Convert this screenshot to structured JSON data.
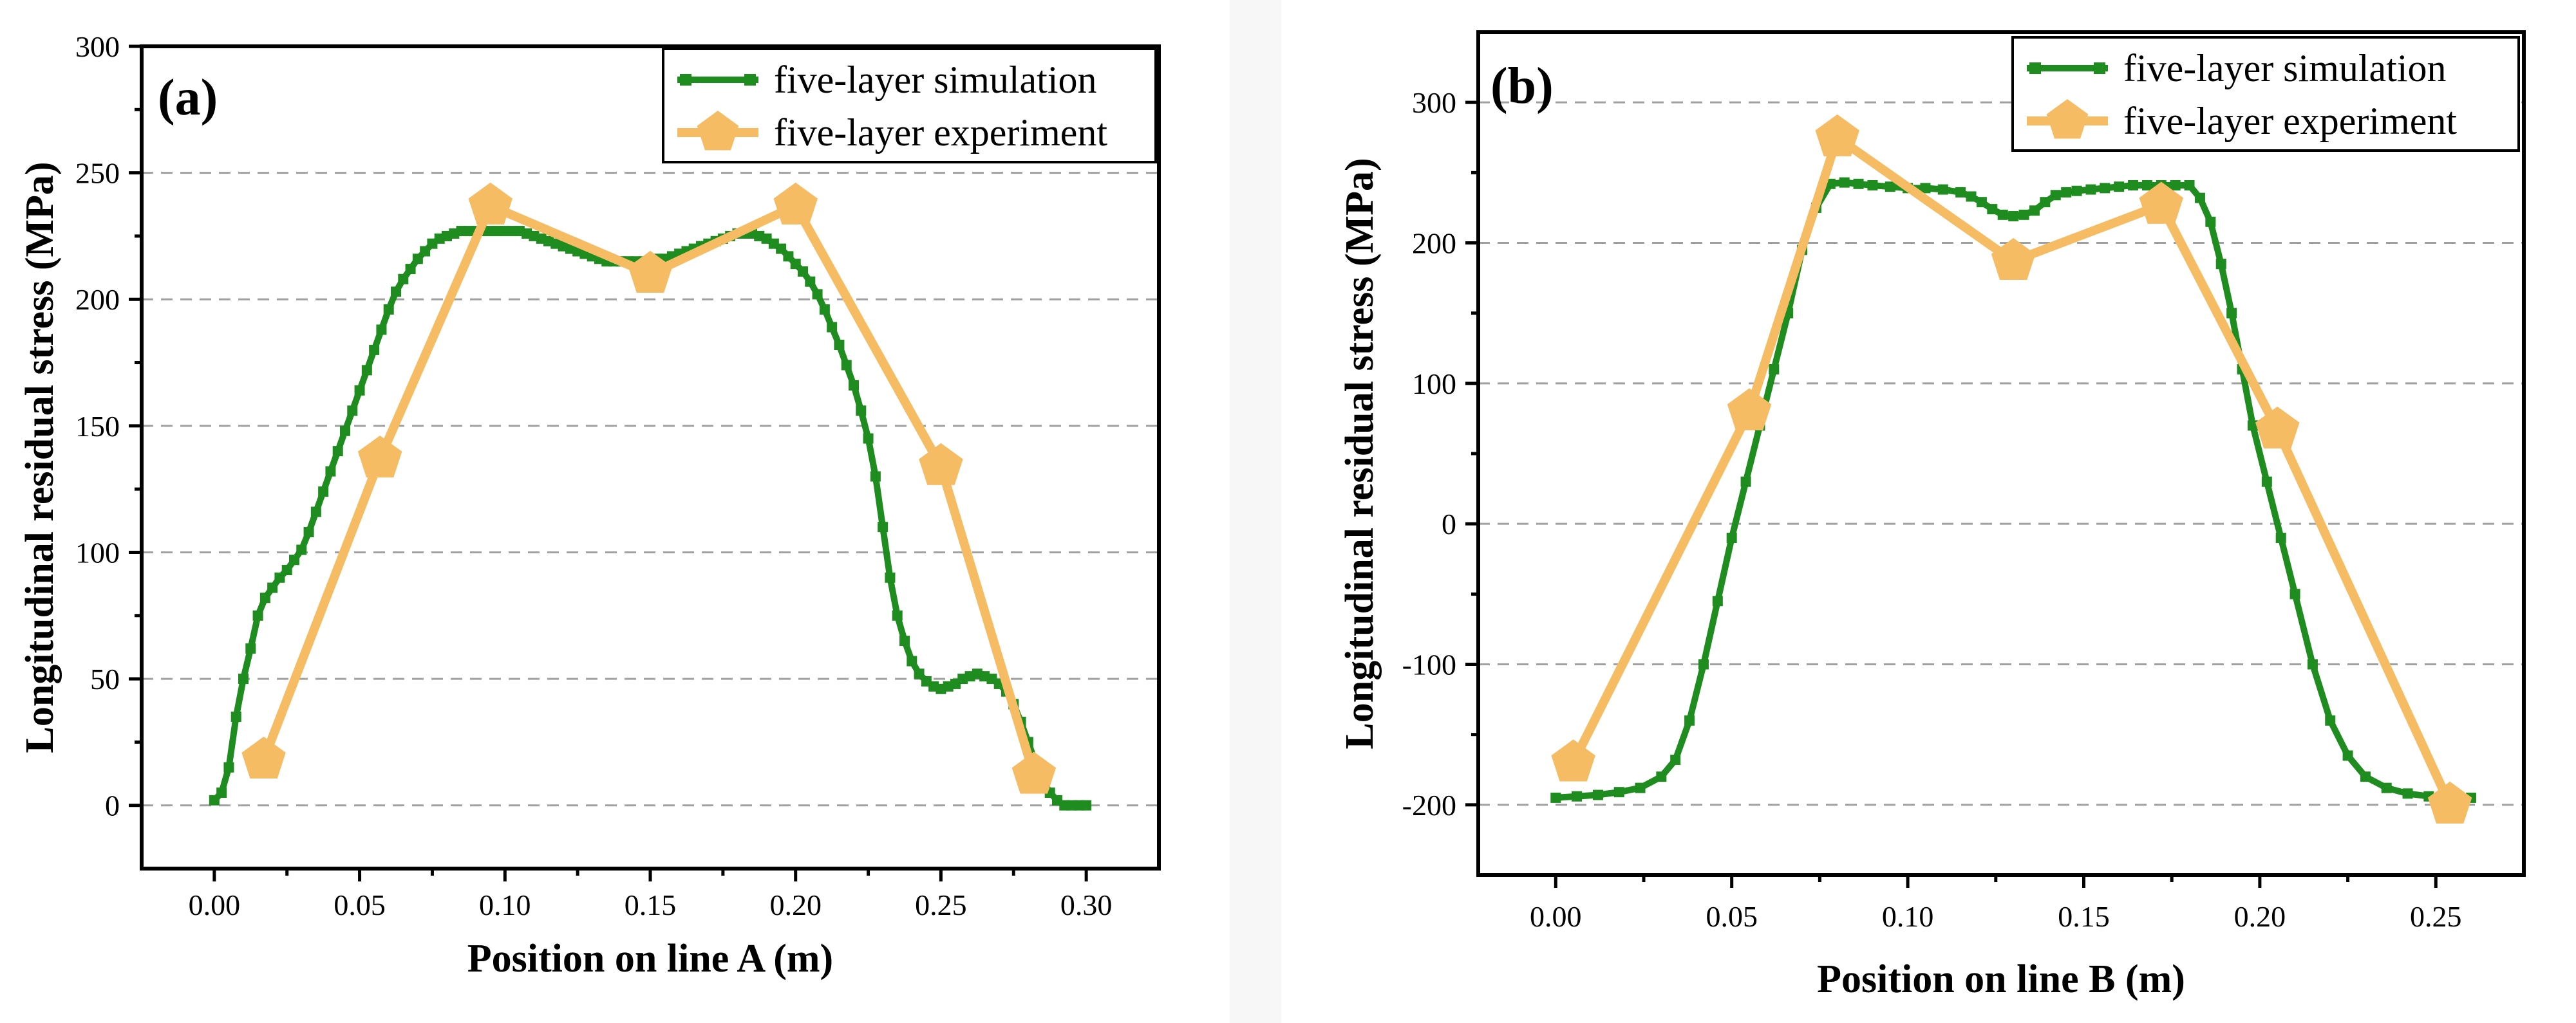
{
  "colors": {
    "simulation": "#1e8c1e",
    "experiment": "#f6bc64",
    "grid": "#a0a0a0"
  },
  "chart_data": [
    {
      "type": "line",
      "panel_label": "(a)",
      "xlabel": "Position on line A (m)",
      "ylabel": "Longitudinal residual stress (MPa)",
      "xlim": [
        -0.025,
        0.325
      ],
      "ylim": [
        -25,
        300
      ],
      "xticks": [
        0.0,
        0.05,
        0.1,
        0.15,
        0.2,
        0.25,
        0.3
      ],
      "xtick_labels": [
        "0.00",
        "0.05",
        "0.10",
        "0.15",
        "0.20",
        "0.25",
        "0.30"
      ],
      "yticks": [
        0,
        50,
        100,
        150,
        200,
        250,
        300
      ],
      "ytick_labels": [
        "0",
        "50",
        "100",
        "150",
        "200",
        "250",
        "300"
      ],
      "grid_y": [
        0,
        50,
        100,
        150,
        200,
        250
      ],
      "legend_position": "top-right",
      "series": [
        {
          "name": "five-layer simulation",
          "marker": "square",
          "x": [
            0.0,
            0.0025,
            0.005,
            0.0075,
            0.01,
            0.0125,
            0.015,
            0.0175,
            0.02,
            0.0225,
            0.025,
            0.0275,
            0.03,
            0.0325,
            0.035,
            0.0375,
            0.04,
            0.0425,
            0.045,
            0.0475,
            0.05,
            0.0525,
            0.055,
            0.0575,
            0.06,
            0.0625,
            0.065,
            0.0675,
            0.07,
            0.0725,
            0.075,
            0.0775,
            0.08,
            0.0825,
            0.085,
            0.0875,
            0.09,
            0.0925,
            0.095,
            0.0975,
            0.1,
            0.1025,
            0.105,
            0.1075,
            0.11,
            0.1125,
            0.115,
            0.1175,
            0.12,
            0.1225,
            0.125,
            0.1275,
            0.13,
            0.1325,
            0.135,
            0.1375,
            0.14,
            0.1425,
            0.145,
            0.1475,
            0.15,
            0.1525,
            0.155,
            0.1575,
            0.16,
            0.1625,
            0.165,
            0.1675,
            0.17,
            0.1725,
            0.175,
            0.1775,
            0.18,
            0.1825,
            0.185,
            0.1875,
            0.19,
            0.1925,
            0.195,
            0.1975,
            0.2,
            0.2025,
            0.205,
            0.2075,
            0.21,
            0.2125,
            0.215,
            0.2175,
            0.22,
            0.2225,
            0.225,
            0.2275,
            0.23,
            0.2325,
            0.235,
            0.2375,
            0.24,
            0.2425,
            0.245,
            0.2475,
            0.25,
            0.2525,
            0.255,
            0.2575,
            0.26,
            0.2625,
            0.265,
            0.2675,
            0.27,
            0.2725,
            0.275,
            0.2775,
            0.28,
            0.2825,
            0.285,
            0.2875,
            0.29,
            0.2925,
            0.295,
            0.2975,
            0.3
          ],
          "y": [
            2,
            5,
            15,
            35,
            50,
            62,
            75,
            82,
            86,
            90,
            93,
            97,
            101,
            108,
            116,
            124,
            132,
            140,
            148,
            156,
            164,
            172,
            180,
            188,
            196,
            203,
            208,
            212,
            216,
            219,
            222,
            224,
            225,
            226,
            227,
            227,
            227,
            227,
            227,
            227,
            227,
            227,
            227,
            226,
            225,
            224,
            223,
            222,
            221,
            220,
            219,
            218,
            217,
            216,
            215,
            215,
            215,
            215,
            215,
            215,
            215,
            216,
            216,
            217,
            218,
            219,
            220,
            221,
            222,
            223,
            224,
            225,
            226,
            226,
            226,
            225,
            224,
            222,
            220,
            217,
            214,
            211,
            207,
            202,
            196,
            189,
            182,
            174,
            166,
            156,
            145,
            130,
            110,
            90,
            75,
            65,
            57,
            52,
            49,
            47,
            46,
            47,
            48,
            50,
            51,
            52,
            51,
            50,
            48,
            45,
            40,
            33,
            25,
            17,
            10,
            5,
            2,
            0,
            0,
            0,
            0
          ],
          "x_trim_note": "",
          "color_key": "simulation"
        },
        {
          "name": "five-layer experiment",
          "marker": "pentagon",
          "x": [
            0.017,
            0.057,
            0.095,
            0.15,
            0.2,
            0.25,
            0.282
          ],
          "y": [
            18,
            137,
            237,
            210,
            237,
            134,
            12
          ],
          "color_key": "experiment"
        }
      ]
    },
    {
      "type": "line",
      "panel_label": "(b)",
      "xlabel": "Position on line B (m)",
      "ylabel": "Longitudinal residual stress (MPa)",
      "xlim": [
        -0.022,
        0.275
      ],
      "ylim": [
        -250,
        350
      ],
      "xticks": [
        0.0,
        0.05,
        0.1,
        0.15,
        0.2,
        0.25
      ],
      "xtick_labels": [
        "0.00",
        "0.05",
        "0.10",
        "0.15",
        "0.20",
        "0.25"
      ],
      "yticks": [
        -200,
        -100,
        0,
        100,
        200,
        300
      ],
      "ytick_labels": [
        "-200",
        "-100",
        "0",
        "100",
        "200",
        "300"
      ],
      "grid_y": [
        -200,
        -100,
        0,
        100,
        200,
        300
      ],
      "legend_position": "top-right",
      "series": [
        {
          "name": "five-layer simulation",
          "marker": "square",
          "x": [
            0.0,
            0.006,
            0.012,
            0.018,
            0.024,
            0.03,
            0.034,
            0.038,
            0.042,
            0.046,
            0.05,
            0.054,
            0.058,
            0.062,
            0.066,
            0.07,
            0.074,
            0.078,
            0.082,
            0.086,
            0.09,
            0.095,
            0.1,
            0.105,
            0.11,
            0.115,
            0.118,
            0.121,
            0.124,
            0.127,
            0.13,
            0.133,
            0.136,
            0.139,
            0.142,
            0.145,
            0.148,
            0.152,
            0.156,
            0.16,
            0.164,
            0.168,
            0.172,
            0.176,
            0.18,
            0.183,
            0.186,
            0.189,
            0.192,
            0.195,
            0.198,
            0.202,
            0.206,
            0.21,
            0.215,
            0.22,
            0.225,
            0.23,
            0.236,
            0.242,
            0.248,
            0.254,
            0.26
          ],
          "y": [
            -195,
            -194,
            -193,
            -191,
            -188,
            -180,
            -168,
            -140,
            -100,
            -55,
            -10,
            30,
            70,
            110,
            150,
            195,
            225,
            242,
            243,
            242,
            241,
            240,
            239,
            239,
            238,
            236,
            233,
            229,
            224,
            220,
            219,
            220,
            223,
            229,
            234,
            236,
            237,
            238,
            239,
            240,
            241,
            241,
            241,
            241,
            241,
            232,
            215,
            185,
            150,
            110,
            70,
            30,
            -10,
            -50,
            -100,
            -140,
            -165,
            -180,
            -188,
            -192,
            -194,
            -195,
            -195
          ],
          "color_key": "simulation"
        },
        {
          "name": "five-layer experiment",
          "marker": "pentagon",
          "x": [
            0.005,
            0.055,
            0.08,
            0.13,
            0.172,
            0.205,
            0.254
          ],
          "y": [
            -170,
            80,
            275,
            187,
            227,
            67,
            -200
          ],
          "color_key": "experiment"
        }
      ]
    }
  ]
}
